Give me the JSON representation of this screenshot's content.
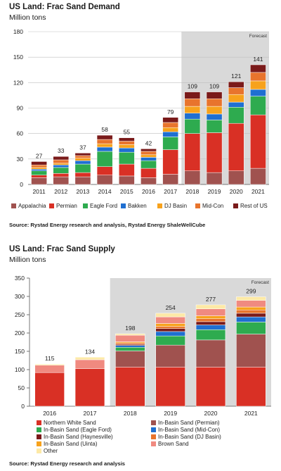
{
  "chart_data": [
    {
      "type": "bar",
      "stacked": true,
      "title": "US Land: Frac Sand Demand",
      "subtitle": "Million tons",
      "source": "Source: Rystad Energy research and analysis, Rystad Energy ShaleWellCube",
      "forecast_label": "Forecast",
      "forecast_from": "2018",
      "categories": [
        "2011",
        "2012",
        "2013",
        "2014",
        "2015",
        "2016",
        "2017",
        "2018",
        "2019",
        "2020",
        "2021"
      ],
      "totals": [
        27,
        33,
        37,
        58,
        55,
        42,
        79,
        109,
        109,
        121,
        141
      ],
      "ylim": [
        0,
        180
      ],
      "yticks": [
        0,
        30,
        60,
        90,
        120,
        150,
        180
      ],
      "grid": true,
      "legend_position": "bottom",
      "series": [
        {
          "name": "Appalachia",
          "color": "#a0524f",
          "values": [
            8,
            9,
            9,
            11,
            10,
            8,
            12,
            16,
            14,
            16,
            19
          ]
        },
        {
          "name": "Permian",
          "color": "#d93025",
          "values": [
            3,
            4,
            5,
            10,
            14,
            11,
            29,
            44,
            47,
            56,
            63
          ]
        },
        {
          "name": "Eagle Ford",
          "color": "#2eab4f",
          "values": [
            5,
            7,
            10,
            18,
            14,
            9,
            15,
            17,
            15,
            19,
            22
          ]
        },
        {
          "name": "Bakken",
          "color": "#1f6fd1",
          "values": [
            2,
            3,
            4,
            5,
            5,
            4,
            6,
            7,
            7,
            6,
            8
          ]
        },
        {
          "name": "DJ Basin",
          "color": "#f7a21c",
          "values": [
            2,
            2,
            3,
            4,
            4,
            3,
            5,
            8,
            9,
            9,
            10
          ]
        },
        {
          "name": "Mid-Con",
          "color": "#e8742d",
          "values": [
            3,
            4,
            3,
            5,
            4,
            4,
            6,
            9,
            9,
            8,
            10
          ]
        },
        {
          "name": "Rest of US",
          "color": "#7a1a1a",
          "values": [
            4,
            4,
            3,
            5,
            4,
            3,
            6,
            8,
            8,
            7,
            9
          ]
        }
      ]
    },
    {
      "type": "bar",
      "stacked": true,
      "title": "US Land: Frac Sand Supply",
      "subtitle": "Million tons",
      "source": "Source: Rystad Energy research and analysis",
      "forecast_label": "Forecast",
      "forecast_from": "2018",
      "categories": [
        "2016",
        "2017",
        "2018",
        "2019",
        "2020",
        "2021"
      ],
      "totals": [
        115,
        134,
        198,
        254,
        277,
        299
      ],
      "ylim": [
        0,
        350
      ],
      "yticks": [
        0,
        50,
        100,
        150,
        200,
        250,
        300,
        350
      ],
      "grid": false,
      "legend_position": "bottom",
      "series": [
        {
          "name": "Northern White Sand",
          "color": "#d93025",
          "values": [
            92,
            103,
            107,
            107,
            107,
            107
          ]
        },
        {
          "name": "In-Basin Sand (Permian)",
          "color": "#a0524f",
          "values": [
            0,
            0,
            44,
            60,
            74,
            90
          ]
        },
        {
          "name": "In-Basin Sand (Eagle Ford)",
          "color": "#2eab4f",
          "values": [
            0,
            0,
            10,
            25,
            28,
            33
          ]
        },
        {
          "name": "In-Basin Sand (Mid-Con)",
          "color": "#1f6fd1",
          "values": [
            0,
            0,
            5,
            12,
            13,
            14
          ]
        },
        {
          "name": "In-Basin Sand (Haynesville)",
          "color": "#7a1a1a",
          "values": [
            0,
            0,
            3,
            8,
            9,
            10
          ]
        },
        {
          "name": "In-Basin Sand (DJ Basin)",
          "color": "#e8742d",
          "values": [
            0,
            0,
            4,
            6,
            8,
            9
          ]
        },
        {
          "name": "In-Basin Sand (Uinta)",
          "color": "#f7a21c",
          "values": [
            0,
            0,
            3,
            8,
            8,
            8
          ]
        },
        {
          "name": "Brown Sand",
          "color": "#f08a80",
          "values": [
            20,
            24,
            18,
            18,
            19,
            18
          ]
        },
        {
          "name": "Other",
          "color": "#fde9a6",
          "values": [
            3,
            7,
            4,
            10,
            11,
            10
          ]
        }
      ]
    }
  ]
}
